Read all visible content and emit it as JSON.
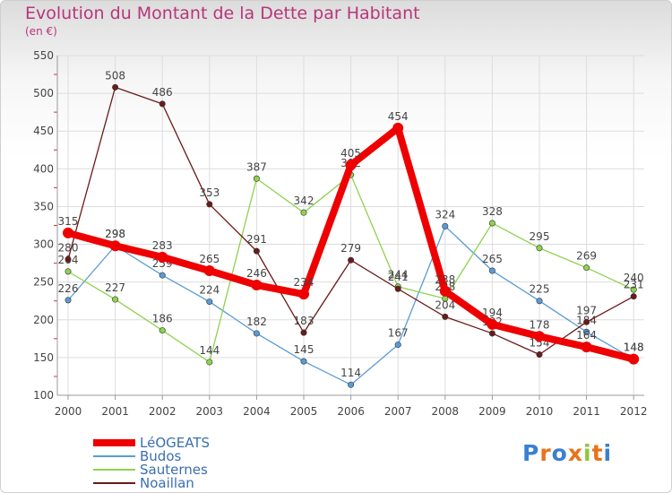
{
  "title": "Evolution du Montant de la Dette par Habitant",
  "subtitle": "(en €)",
  "logo": "Proxiti",
  "chart_data": {
    "type": "line",
    "x": [
      "2000",
      "2001",
      "2002",
      "2003",
      "2004",
      "2005",
      "2006",
      "2007",
      "2008",
      "2009",
      "2010",
      "2011",
      "2012"
    ],
    "ylim": [
      100,
      550
    ],
    "yticks": [
      100,
      150,
      200,
      250,
      300,
      350,
      400,
      450,
      500,
      550
    ],
    "grid": true,
    "legend_position": "bottom-left",
    "series": [
      {
        "name": "LéOGEATS",
        "color": "#ee0000",
        "values": [
          315,
          298,
          283,
          265,
          246,
          234,
          405,
          454,
          238,
          194,
          178,
          164,
          148
        ]
      },
      {
        "name": "Budos",
        "color": "#5b9bd5",
        "values": [
          226,
          298,
          259,
          224,
          182,
          145,
          114,
          167,
          324,
          265,
          225,
          184,
          148
        ]
      },
      {
        "name": "Sauternes",
        "color": "#8fd24f",
        "values": [
          264,
          227,
          186,
          144,
          387,
          342,
          392,
          244,
          228,
          328,
          295,
          269,
          240
        ]
      },
      {
        "name": "Noaillan",
        "color": "#6b1a1a",
        "values": [
          280,
          508,
          486,
          353,
          291,
          183,
          279,
          241,
          204,
          182,
          154,
          197,
          231
        ]
      }
    ]
  }
}
